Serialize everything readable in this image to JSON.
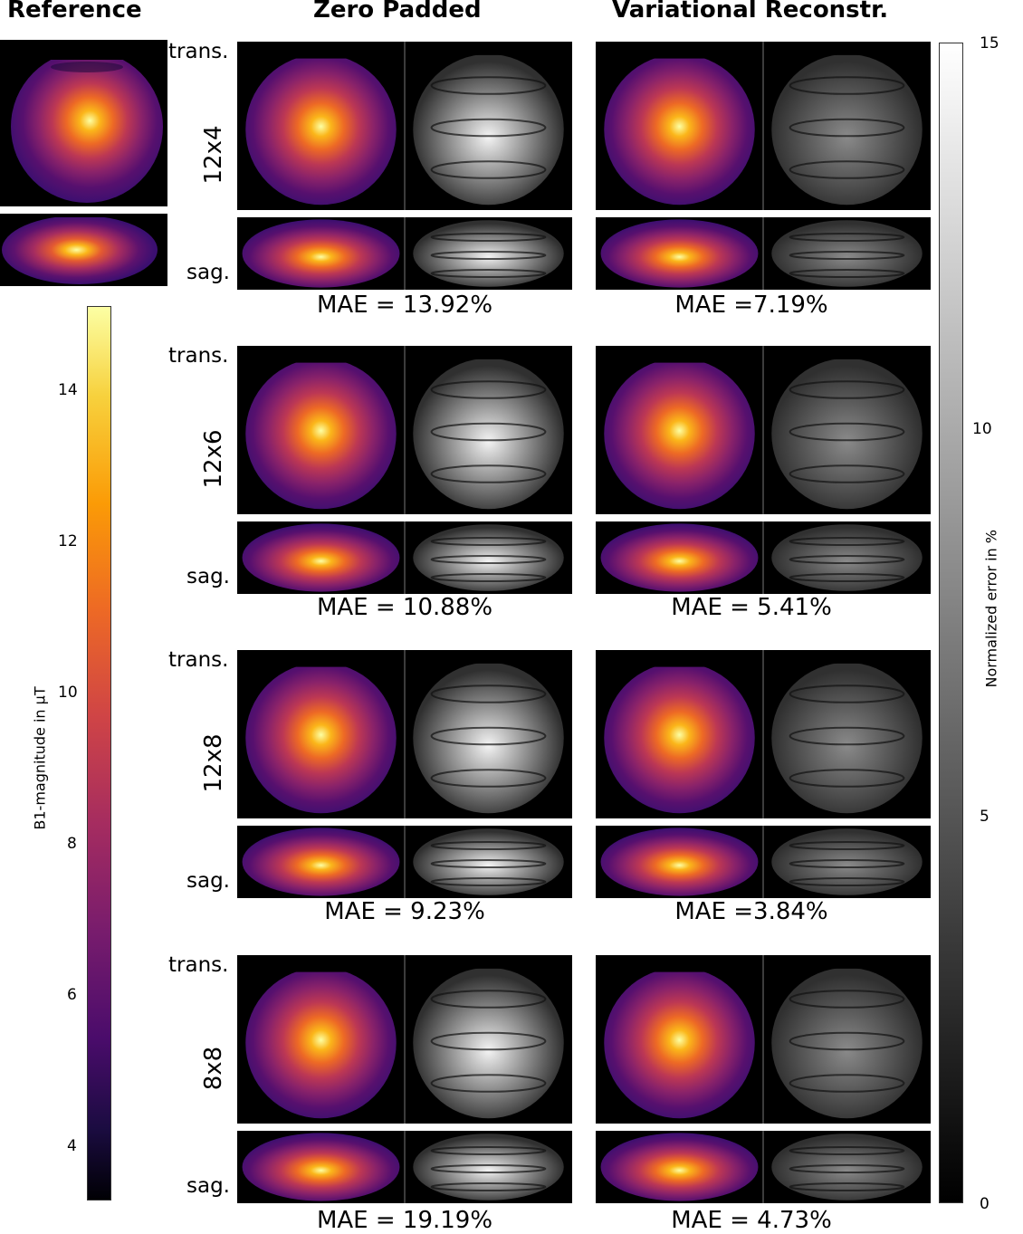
{
  "columns": {
    "reference": "Reference",
    "zero_padded": "Zero Padded",
    "variational": "Variational Reconstr."
  },
  "row_labels": {
    "transverse": "trans.",
    "sagittal": "sag."
  },
  "configs": [
    {
      "name": "12x4",
      "zero_padded_mae": "MAE = 13.92%",
      "variational_mae": "MAE =7.19%"
    },
    {
      "name": "12x6",
      "zero_padded_mae": "MAE = 10.88%",
      "variational_mae": "MAE = 5.41%"
    },
    {
      "name": "12x8",
      "zero_padded_mae": "MAE = 9.23%",
      "variational_mae": "MAE =3.84%"
    },
    {
      "name": "8x8",
      "zero_padded_mae": "MAE = 19.19%",
      "variational_mae": "MAE = 4.73%"
    }
  ],
  "b1_colorbar": {
    "label": "B1-magnitude in µT",
    "ticks": [
      "4",
      "6",
      "8",
      "10",
      "12",
      "14"
    ],
    "range": [
      3.3,
      15.1
    ],
    "colormap": "inferno"
  },
  "error_colorbar": {
    "label": "Normalized error in %",
    "ticks": [
      "0",
      "5",
      "10",
      "15"
    ],
    "range": [
      0,
      15
    ],
    "colormap": "gray"
  }
}
